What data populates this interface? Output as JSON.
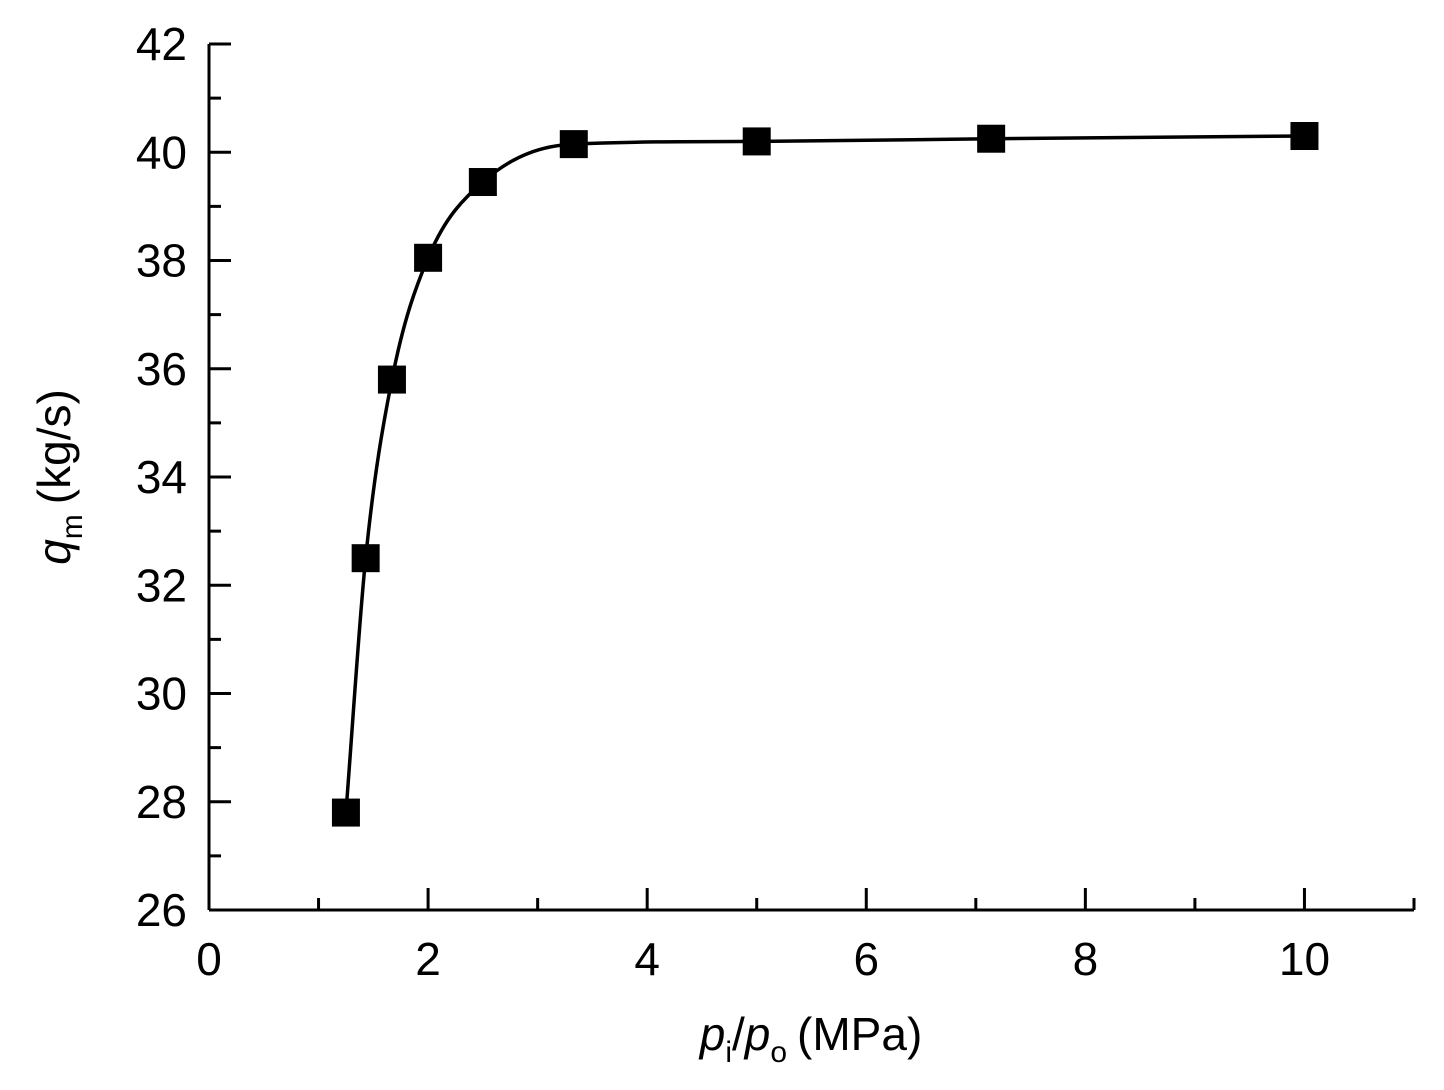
{
  "chart_data": {
    "type": "line",
    "title": "",
    "x_title": {
      "var1": "p",
      "sub1": "i",
      "sep": "/",
      "var2": "p",
      "sub2": "o",
      "unit": "(MPa)"
    },
    "y_title": {
      "var": "q",
      "sub": "m",
      "unit": "(kg/s)"
    },
    "xlim": [
      0,
      11
    ],
    "ylim": [
      26,
      42
    ],
    "x_ticks": [
      0,
      2,
      4,
      6,
      8,
      10
    ],
    "x_minor_ticks": [
      1,
      3,
      5,
      7,
      9,
      11
    ],
    "y_ticks": [
      26,
      28,
      30,
      32,
      34,
      36,
      38,
      40,
      42
    ],
    "y_minor_ticks": [
      27,
      29,
      31,
      33,
      35,
      37,
      39,
      41
    ],
    "grid": false,
    "legend": "none",
    "series": [
      {
        "marker": "square",
        "color": "#000000",
        "x": [
          1.25,
          1.43,
          1.67,
          2.0,
          2.5,
          3.33,
          5.0,
          7.14,
          10.0
        ],
        "y": [
          27.8,
          32.5,
          35.8,
          38.05,
          39.45,
          40.15,
          40.2,
          40.25,
          40.3
        ]
      }
    ]
  }
}
